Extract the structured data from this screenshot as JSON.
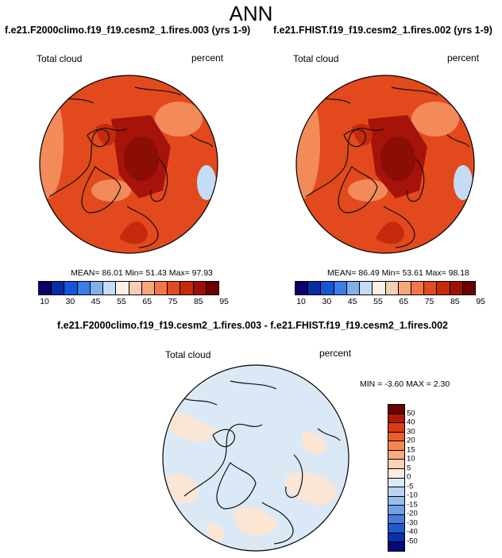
{
  "season": "ANN",
  "panels": [
    {
      "title": "f.e21.F2000climo.f19_f19.cesm2_1.fires.003 (yrs 1-9)",
      "variable": "Total cloud",
      "units": "percent",
      "stats": "MEAN=  86.01  Min=  51.43  Max=  97.93"
    },
    {
      "title": "f.e21.FHIST.f19_f19.cesm2_1.fires.002 (yrs 1-9)",
      "variable": "Total cloud",
      "units": "percent",
      "stats": "MEAN=  86.49  Min=  53.61  Max=  98.18"
    }
  ],
  "colorbar": {
    "colors": [
      "#08006b",
      "#0a2ca3",
      "#1555d6",
      "#3a7ee8",
      "#7fb0ee",
      "#c4dcf5",
      "#fbefe6",
      "#f8cfb0",
      "#f5a67e",
      "#f07748",
      "#e24b1e",
      "#c62a0d",
      "#9d1104",
      "#6c0000"
    ],
    "tick_labels": [
      "10",
      "30",
      "45",
      "55",
      "65",
      "75",
      "85",
      "95"
    ]
  },
  "diff_panel": {
    "title": "f.e21.F2000climo.f19_f19.cesm2_1.fires.003 - f.e21.FHIST.f19_f19.cesm2_1.fires.002",
    "variable": "Total cloud",
    "units": "percent",
    "stats": "MIN =  -3.60 MAX =   2.30",
    "colorbar_colors": [
      "#6c0000",
      "#b11a06",
      "#dc3a12",
      "#ee5b2a",
      "#f58652",
      "#f9ab83",
      "#fcd1b4",
      "#fbeee1",
      "#dce9f7",
      "#b9d3f1",
      "#97bdeb",
      "#6f9fe5",
      "#477ddc",
      "#2257cf",
      "#0a30ad",
      "#060a78"
    ],
    "tick_labels": [
      "50",
      "40",
      "30",
      "20",
      "15",
      "10",
      "5",
      "0",
      "-5",
      "-10",
      "-15",
      "-20",
      "-30",
      "-40",
      "-50"
    ]
  },
  "colors": {
    "diff_dominant": "#dbe8f6",
    "diff_positive": "#fbe6d5",
    "field_base": "#e2491d",
    "field_high": "#a6130a",
    "field_low": "#f28a5a"
  }
}
